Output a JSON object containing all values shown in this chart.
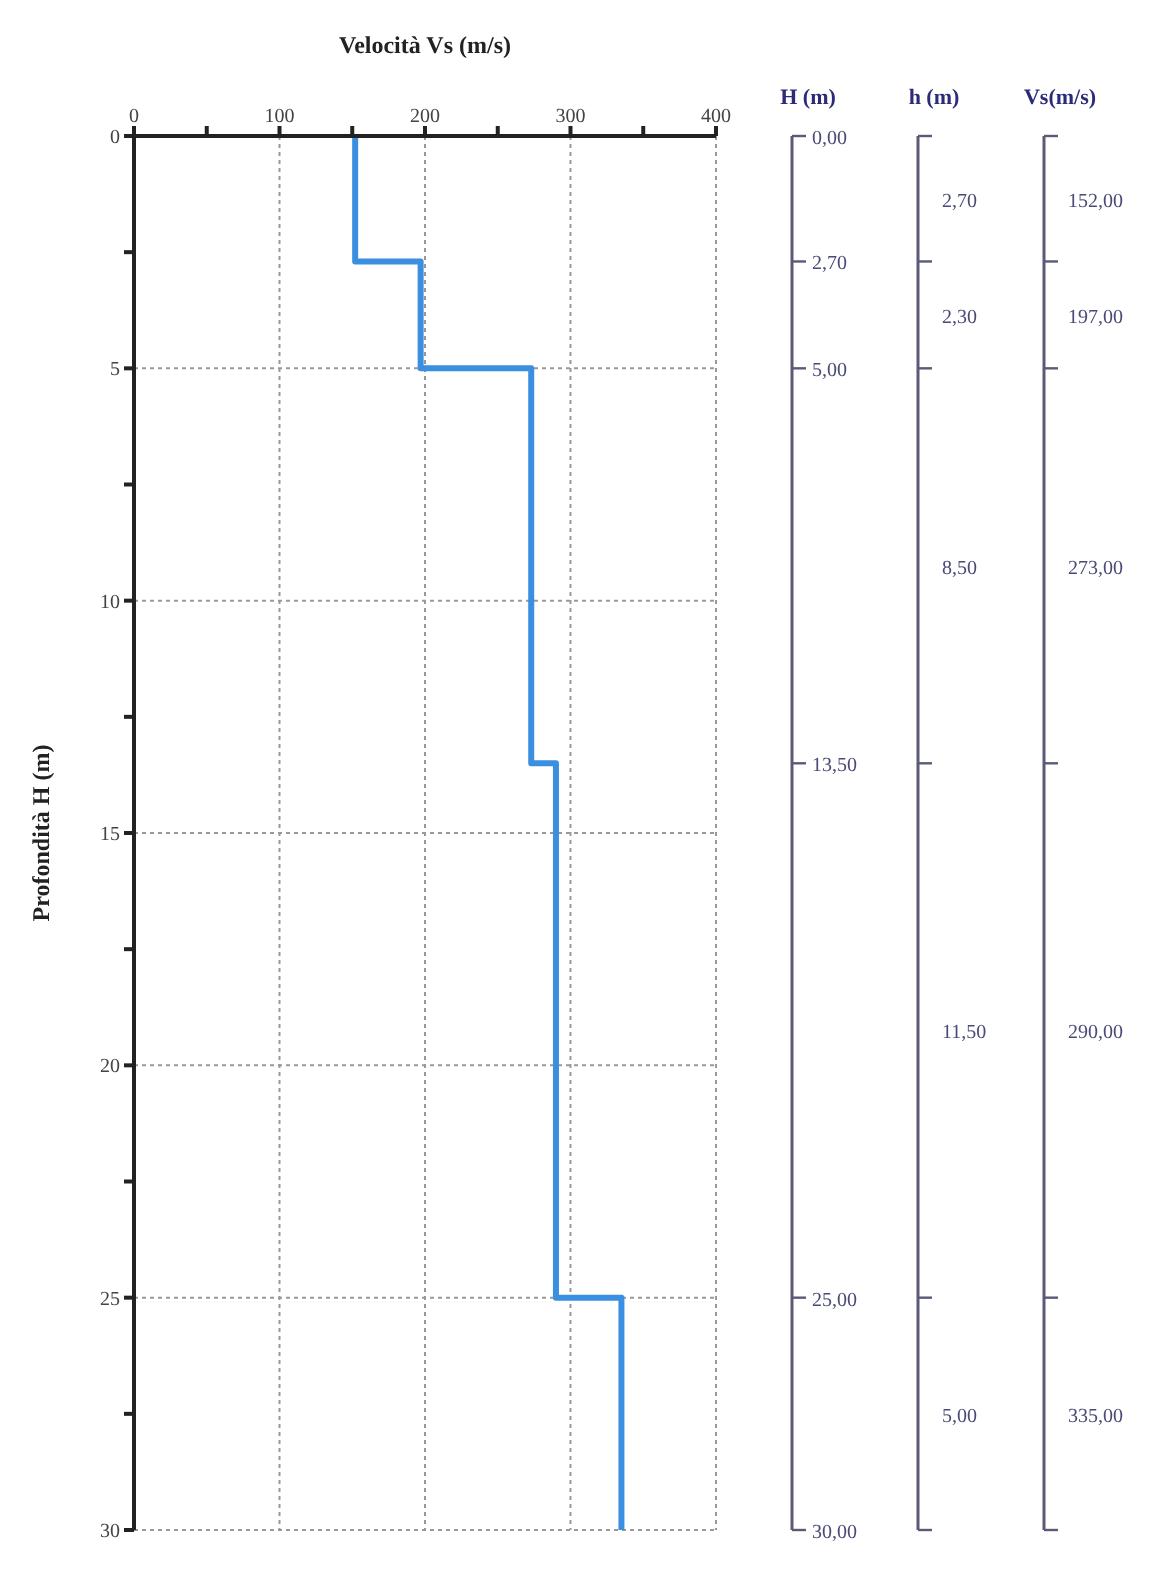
{
  "chart_data": {
    "type": "line",
    "xlabel": "Velocità Vs (m/s)",
    "ylabel": "Profondità H (m)",
    "series": [
      {
        "color": "#3b8fe0",
        "x": [
          152,
          152,
          197,
          197,
          273,
          273,
          290,
          290,
          335,
          335
        ],
        "values": [
          0,
          2.7,
          2.7,
          5,
          5,
          13.5,
          13.5,
          25,
          25,
          30
        ]
      }
    ],
    "xlim": [
      0,
      400
    ],
    "xticks": [
      0,
      {
        "value": 50,
        "label": null
      },
      100,
      {
        "value": 150,
        "label": null
      },
      200,
      {
        "value": 250,
        "label": null
      },
      300,
      {
        "value": 350,
        "label": null
      },
      400
    ],
    "ylim": [
      30,
      0
    ],
    "yticks": [
      0,
      {
        "value": 2.5,
        "label": null
      },
      5,
      {
        "value": 7.5,
        "label": null
      },
      10,
      {
        "value": 12.5,
        "label": null
      },
      15,
      {
        "value": 17.5,
        "label": null
      },
      20,
      {
        "value": 22.5,
        "label": null
      },
      25,
      {
        "value": 27.5,
        "label": null
      },
      30
    ],
    "grid": true,
    "y2label": "H (m)",
    "y2lim": [
      30,
      0
    ],
    "y2ticks": [
      {
        "value": 0,
        "label": "0,00"
      },
      {
        "value": 2.7,
        "label": "2,70"
      },
      {
        "value": 5,
        "label": "5,00"
      },
      {
        "value": 13.5,
        "label": "13,50"
      },
      {
        "value": 25,
        "label": "25,00"
      },
      {
        "value": 30,
        "label": "30,00"
      }
    ],
    "annotations": [
      "h (m)",
      "2,70",
      "2,30",
      "8,50",
      "11,50",
      "5,00",
      "Vs(m/s)",
      "152,00",
      "197,00",
      "273,00",
      "290,00",
      "335,00"
    ]
  }
}
